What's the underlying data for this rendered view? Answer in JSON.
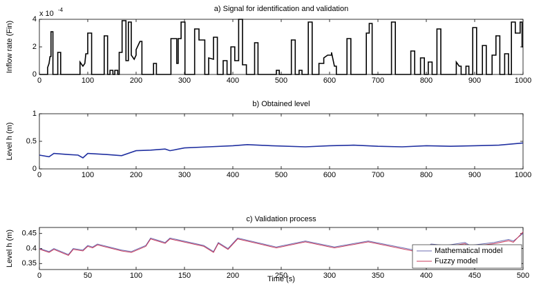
{
  "chart_data": [
    {
      "type": "line",
      "title": "a) Signal for identification and validation",
      "y_label": "Inflow rate (Fin)",
      "y_multiplier": "x 10",
      "y_multiplier_exponent": "-4",
      "color": "#000000",
      "xlim": [
        0,
        1000
      ],
      "xticks": [
        0,
        100,
        200,
        300,
        400,
        500,
        600,
        700,
        800,
        900,
        1000
      ],
      "ylim": [
        0,
        4
      ],
      "yticks": [
        0,
        2,
        4
      ],
      "x": [
        0,
        17,
        17,
        20,
        22,
        24,
        24,
        28,
        28,
        38,
        38,
        44,
        44,
        84,
        84,
        90,
        94,
        96,
        100,
        100,
        108,
        108,
        134,
        134,
        141,
        141,
        146,
        146,
        152,
        152,
        156,
        156,
        162,
        162,
        165,
        165,
        171,
        171,
        179,
        179,
        184,
        184,
        190,
        190,
        196,
        200,
        200,
        208,
        212,
        212,
        236,
        236,
        242,
        242,
        272,
        272,
        284,
        284,
        287,
        287,
        293,
        293,
        301,
        301,
        321,
        321,
        330,
        330,
        342,
        342,
        350,
        350,
        360,
        360,
        368,
        368,
        380,
        380,
        388,
        388,
        396,
        396,
        404,
        404,
        412,
        412,
        420,
        420,
        428,
        428,
        445,
        445,
        452,
        452,
        490,
        490,
        496,
        496,
        521,
        521,
        529,
        529,
        537,
        537,
        543,
        543,
        556,
        556,
        564,
        564,
        578,
        578,
        588,
        588,
        596,
        604,
        604,
        610,
        614,
        614,
        636,
        636,
        644,
        644,
        676,
        676,
        682,
        682,
        688,
        688,
        728,
        728,
        736,
        736,
        768,
        768,
        776,
        776,
        788,
        788,
        796,
        796,
        804,
        804,
        812,
        812,
        822,
        822,
        830,
        830,
        862,
        862,
        868,
        872,
        872,
        882,
        882,
        888,
        888,
        896,
        896,
        904,
        904,
        916,
        916,
        924,
        924,
        936,
        936,
        944,
        944,
        952,
        952,
        962,
        962,
        970,
        970,
        976,
        976,
        984,
        984,
        994,
        994,
        998,
        998,
        1000
      ],
      "values": [
        0,
        0,
        0.5,
        0.8,
        1.3,
        1.3,
        3.1,
        3.1,
        0,
        0,
        1.6,
        1.6,
        0,
        0,
        0.9,
        0.6,
        0.8,
        1.5,
        1.5,
        3.0,
        3.0,
        0,
        0,
        2.8,
        2.8,
        0,
        0,
        0.3,
        0.3,
        0,
        0,
        0.3,
        0.3,
        0,
        0,
        1.6,
        1.6,
        3.9,
        3.9,
        1.0,
        1.0,
        3.8,
        3.8,
        1.4,
        1.1,
        1.4,
        1.8,
        2.4,
        2.4,
        0,
        0,
        0.8,
        0.8,
        0,
        0,
        2.6,
        2.6,
        0.8,
        0.8,
        2.6,
        2.6,
        3.8,
        3.8,
        0,
        0,
        3.3,
        3.3,
        2.5,
        2.5,
        0,
        0,
        1.2,
        1.1,
        2.7,
        2.7,
        0,
        0,
        1.0,
        1.0,
        0,
        0,
        2.0,
        2.0,
        1.0,
        1.0,
        4.0,
        4.0,
        0.7,
        0.7,
        0,
        0,
        2.3,
        2.3,
        0,
        0,
        0.3,
        0.3,
        0,
        0,
        2.5,
        2.5,
        0,
        0,
        0.3,
        0.3,
        0,
        0,
        3.8,
        3.8,
        0,
        0,
        0.8,
        0.8,
        1.2,
        1.4,
        1.4,
        1.6,
        0.6,
        0.6,
        0,
        0,
        2.6,
        2.6,
        0,
        0,
        3.0,
        3.0,
        3.7,
        3.7,
        0,
        0,
        3.8,
        3.8,
        0,
        0,
        1.7,
        1.7,
        0,
        0,
        1.2,
        1.2,
        0,
        0,
        0.9,
        0.9,
        0,
        0,
        3.3,
        3.3,
        0,
        0,
        0.9,
        0.6,
        0.6,
        0,
        0,
        0.6,
        0.6,
        0,
        0,
        3.4,
        3.4,
        0,
        0,
        2.1,
        2.1,
        0,
        0,
        1.4,
        1.4,
        2.8,
        2.8,
        0,
        0,
        1.5,
        1.5,
        0,
        0,
        3.8,
        3.8,
        3.0,
        3.0,
        3.8,
        3.8,
        2.0,
        2.0
      ]
    },
    {
      "type": "line",
      "title": "b) Obtained level",
      "y_label": "Level h (m)",
      "color": "#1f2fa0",
      "xlim": [
        0,
        1000
      ],
      "xticks": [
        0,
        100,
        200,
        300,
        400,
        500,
        600,
        700,
        800,
        900,
        1000
      ],
      "ylim": [
        0,
        1
      ],
      "yticks": [
        0,
        0.5,
        1
      ],
      "x": [
        0,
        20,
        30,
        60,
        80,
        90,
        100,
        140,
        170,
        200,
        230,
        260,
        270,
        300,
        350,
        400,
        430,
        480,
        550,
        600,
        650,
        700,
        750,
        800,
        850,
        900,
        950,
        1000
      ],
      "values": [
        0.25,
        0.22,
        0.28,
        0.26,
        0.25,
        0.2,
        0.28,
        0.26,
        0.24,
        0.33,
        0.34,
        0.36,
        0.33,
        0.38,
        0.4,
        0.42,
        0.44,
        0.42,
        0.4,
        0.42,
        0.43,
        0.41,
        0.4,
        0.42,
        0.41,
        0.42,
        0.43,
        0.47
      ]
    },
    {
      "type": "line",
      "title": "c) Validation process",
      "y_label": "Level h (m)",
      "x_label": "Time (s)",
      "xlim": [
        0,
        500
      ],
      "xticks": [
        0,
        50,
        100,
        150,
        200,
        250,
        300,
        350,
        400,
        450,
        500
      ],
      "ylim": [
        0.33,
        0.47
      ],
      "yticks": [
        0.35,
        0.4,
        0.45
      ],
      "legend": "lower right",
      "x": [
        0,
        10,
        15,
        30,
        35,
        45,
        50,
        55,
        60,
        85,
        95,
        110,
        115,
        125,
        130,
        135,
        170,
        180,
        185,
        195,
        205,
        245,
        275,
        305,
        340,
        395,
        405,
        420,
        440,
        445,
        470,
        485,
        490,
        500
      ],
      "series": [
        {
          "name": "Mathematical model",
          "color": "#6b6bb0",
          "values": [
            0.4,
            0.39,
            0.4,
            0.38,
            0.4,
            0.395,
            0.41,
            0.405,
            0.415,
            0.395,
            0.39,
            0.41,
            0.435,
            0.425,
            0.42,
            0.435,
            0.41,
            0.39,
            0.42,
            0.4,
            0.435,
            0.405,
            0.425,
            0.405,
            0.425,
            0.39,
            0.415,
            0.41,
            0.42,
            0.41,
            0.42,
            0.43,
            0.425,
            0.45
          ]
        },
        {
          "name": "Fuzzy model",
          "color": "#c8385a",
          "values": [
            0.398,
            0.387,
            0.397,
            0.377,
            0.397,
            0.392,
            0.407,
            0.402,
            0.412,
            0.392,
            0.387,
            0.407,
            0.432,
            0.422,
            0.417,
            0.432,
            0.407,
            0.387,
            0.417,
            0.397,
            0.432,
            0.402,
            0.422,
            0.402,
            0.422,
            0.386,
            0.411,
            0.406,
            0.416,
            0.406,
            0.416,
            0.426,
            0.421,
            0.455
          ]
        }
      ]
    }
  ]
}
